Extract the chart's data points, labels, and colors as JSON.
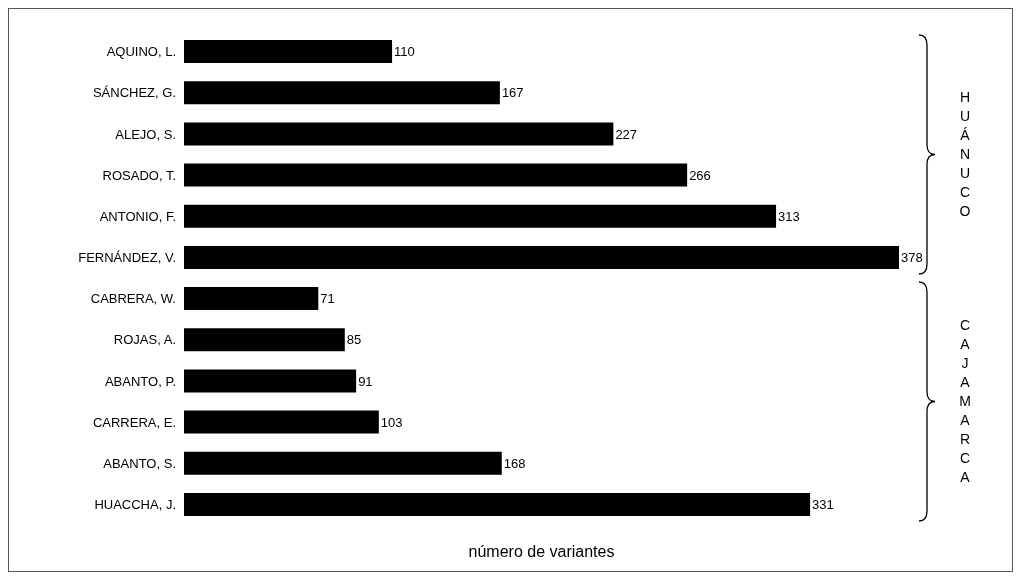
{
  "chart_data": {
    "type": "bar",
    "orientation": "horizontal",
    "categories": [
      "AQUINO, L.",
      "SÁNCHEZ, G.",
      "ALEJO, S.",
      "ROSADO, T.",
      "ANTONIO, F.",
      "FERNÁNDEZ, V.",
      "CABRERA, W.",
      "ROJAS, A.",
      "ABANTO, P.",
      "CARRERA, E.",
      "ABANTO, S.",
      "HUACCHA, J."
    ],
    "values": [
      110,
      167,
      227,
      266,
      313,
      378,
      71,
      85,
      91,
      103,
      168,
      331
    ],
    "color": "#000000",
    "data_labels": true,
    "xlabel": "número de variantes",
    "annotations": [
      "HUÁNUCO",
      "CAJAMARCA"
    ]
  }
}
